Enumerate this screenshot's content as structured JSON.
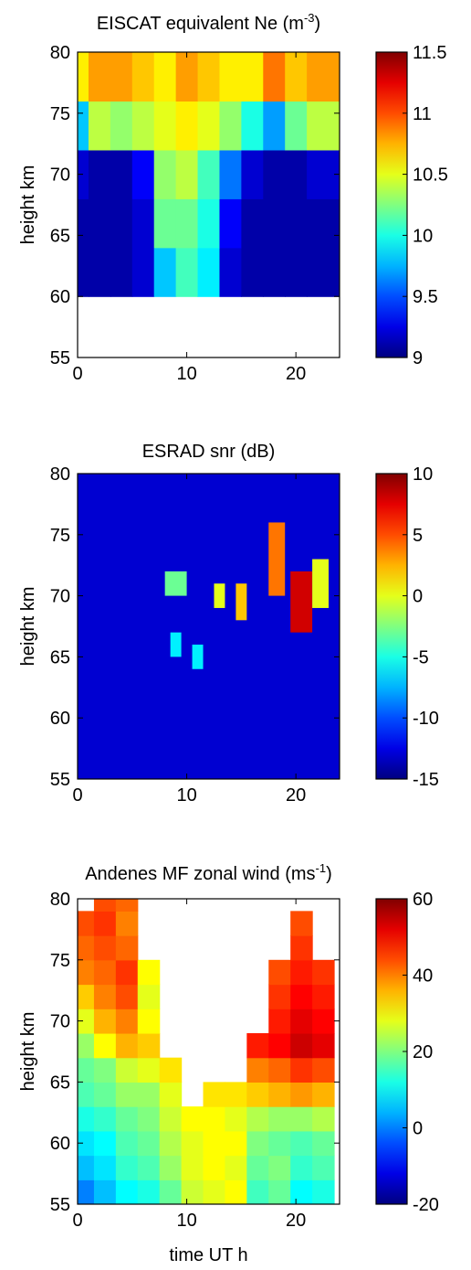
{
  "chart_data": [
    {
      "type": "heatmap",
      "title": "EISCAT equivalent Ne (m",
      "title_superscript": "-3",
      "title_suffix": ")",
      "xlabel": "",
      "ylabel": "height km",
      "xlim": [
        0,
        24
      ],
      "ylim": [
        55,
        80
      ],
      "x_ticks": [
        "0",
        "10",
        "20"
      ],
      "y_ticks": [
        "55",
        "60",
        "65",
        "70",
        "75",
        "80"
      ],
      "colorbar": {
        "min": 9,
        "max": 11.5,
        "ticks": [
          "9",
          "9.5",
          "10",
          "10.5",
          "11",
          "11.5"
        ]
      },
      "colormap": "jet",
      "no_data_below_km": 60,
      "x_hours": [
        0,
        2,
        4,
        6,
        8,
        10,
        12,
        14,
        16,
        18,
        20,
        22
      ],
      "y_km": [
        62,
        66,
        70,
        74,
        78
      ],
      "values": [
        [
          9.1,
          9.1,
          9.1,
          9.2,
          9.8,
          10.1,
          9.9,
          9.2,
          9.1,
          9.1,
          9.1,
          9.1
        ],
        [
          9.1,
          9.1,
          9.1,
          9.2,
          10.2,
          10.2,
          10.0,
          9.3,
          9.1,
          9.1,
          9.1,
          9.1
        ],
        [
          9.2,
          9.1,
          9.1,
          9.3,
          10.3,
          10.4,
          10.1,
          9.6,
          9.2,
          9.1,
          9.1,
          9.2
        ],
        [
          9.8,
          10.4,
          10.3,
          10.4,
          10.5,
          10.6,
          10.5,
          10.3,
          10.0,
          9.7,
          10.2,
          10.4
        ],
        [
          10.6,
          10.8,
          10.8,
          10.7,
          10.6,
          10.8,
          10.7,
          10.6,
          10.6,
          10.9,
          10.7,
          10.8
        ]
      ]
    },
    {
      "type": "heatmap",
      "title": "ESRAD snr (dB)",
      "xlabel": "",
      "ylabel": "height km",
      "xlim": [
        0,
        24
      ],
      "ylim": [
        55,
        80
      ],
      "x_ticks": [
        "0",
        "10",
        "20"
      ],
      "y_ticks": [
        "55",
        "60",
        "65",
        "70",
        "75",
        "80"
      ],
      "colorbar": {
        "min": -15,
        "max": 10,
        "ticks": [
          "-15",
          "-10",
          "-5",
          "0",
          "5",
          "10"
        ]
      },
      "colormap": "jet",
      "background_value": -13,
      "features": [
        {
          "x_hours": [
            8,
            10
          ],
          "y_km": [
            70,
            72
          ],
          "value": -3
        },
        {
          "x_hours": [
            12.5,
            13.5
          ],
          "y_km": [
            69,
            71
          ],
          "value": 0
        },
        {
          "x_hours": [
            14.5,
            15.5
          ],
          "y_km": [
            68,
            71
          ],
          "value": 2
        },
        {
          "x_hours": [
            8.5,
            9.5
          ],
          "y_km": [
            65,
            67
          ],
          "value": -6
        },
        {
          "x_hours": [
            10.5,
            11.5
          ],
          "y_km": [
            64,
            66
          ],
          "value": -6
        },
        {
          "x_hours": [
            17.5,
            19
          ],
          "y_km": [
            70,
            76
          ],
          "value": 4
        },
        {
          "x_hours": [
            19.5,
            21.5
          ],
          "y_km": [
            67,
            72
          ],
          "value": 8
        },
        {
          "x_hours": [
            21.5,
            23
          ],
          "y_km": [
            69,
            73
          ],
          "value": 0
        }
      ]
    },
    {
      "type": "heatmap",
      "title": "Andenes MF zonal wind (ms",
      "title_superscript": "-1",
      "title_suffix": ")",
      "xlabel": "time UT h",
      "ylabel": "height km",
      "xlim": [
        0,
        24
      ],
      "ylim": [
        55,
        80
      ],
      "x_ticks": [
        "0",
        "10",
        "20"
      ],
      "y_ticks": [
        "55",
        "60",
        "65",
        "70",
        "75",
        "80"
      ],
      "colorbar": {
        "min": -20,
        "max": 60,
        "ticks": [
          "-20",
          "0",
          "20",
          "40",
          "60"
        ]
      },
      "colormap": "jet",
      "x_hours": [
        0.5,
        2.5,
        4.5,
        6.5,
        8.5,
        10.5,
        12.5,
        14.5,
        16.5,
        18.5,
        20.5,
        22.5
      ],
      "y_km": [
        56,
        58,
        60,
        62,
        64,
        66,
        68,
        70,
        72,
        74,
        76,
        78,
        80
      ],
      "values": [
        [
          0,
          5,
          10,
          12,
          18,
          26,
          28,
          30,
          15,
          18,
          10,
          12
        ],
        [
          5,
          8,
          14,
          16,
          22,
          28,
          30,
          28,
          18,
          20,
          14,
          16
        ],
        [
          8,
          10,
          16,
          18,
          24,
          28,
          30,
          30,
          20,
          18,
          16,
          18
        ],
        [
          12,
          14,
          18,
          20,
          26,
          30,
          30,
          28,
          24,
          22,
          22,
          24
        ],
        [
          16,
          18,
          22,
          22,
          28,
          null,
          32,
          32,
          34,
          36,
          38,
          36
        ],
        [
          18,
          20,
          26,
          28,
          32,
          null,
          null,
          null,
          40,
          42,
          46,
          44
        ],
        [
          22,
          30,
          36,
          34,
          null,
          null,
          null,
          null,
          48,
          50,
          54,
          52
        ],
        [
          28,
          36,
          40,
          30,
          null,
          null,
          null,
          null,
          null,
          48,
          52,
          50
        ],
        [
          34,
          40,
          44,
          28,
          null,
          null,
          null,
          null,
          null,
          46,
          50,
          48
        ],
        [
          40,
          42,
          46,
          30,
          null,
          null,
          null,
          null,
          null,
          44,
          48,
          46
        ],
        [
          42,
          44,
          42,
          null,
          null,
          null,
          null,
          null,
          null,
          null,
          46,
          null
        ],
        [
          44,
          46,
          40,
          null,
          null,
          null,
          null,
          null,
          null,
          null,
          44,
          null
        ],
        [
          null,
          44,
          42,
          null,
          null,
          null,
          null,
          null,
          null,
          null,
          null,
          null
        ]
      ]
    }
  ]
}
